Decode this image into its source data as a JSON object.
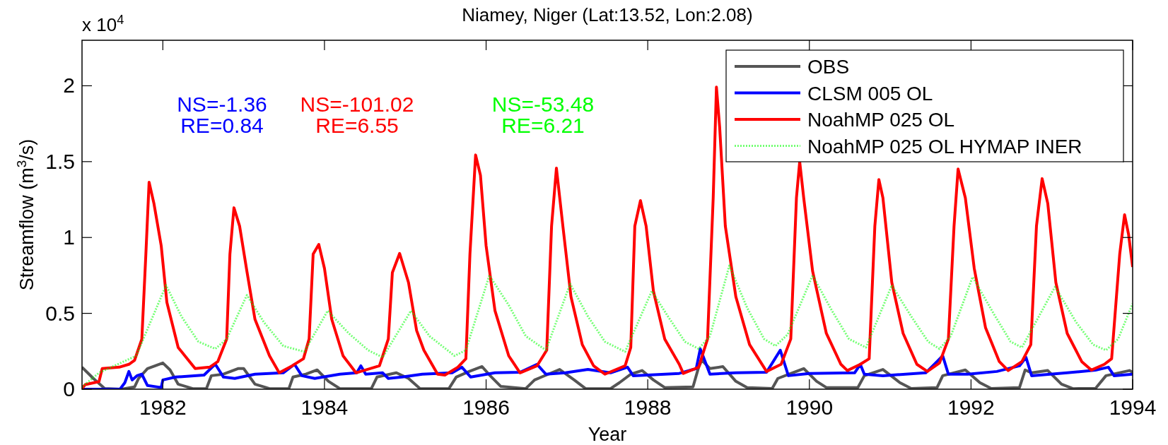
{
  "chart_data": {
    "type": "line",
    "title": "Niamey, Niger (Lat:13.52, Lon:2.08)",
    "xlabel": "Year",
    "ylabel": "Streamflow (m$^{3}$/s)",
    "annotations": [
      "x 10$^{4}$",
      "NS=-1.36",
      "RE=0.84",
      "NS=-101.02",
      "RE=6.55",
      "NS=-53.48",
      "RE=6.21"
    ],
    "xlim": [
      1981,
      1994
    ],
    "xticks": [
      1982,
      1984,
      1986,
      1988,
      1990,
      1992,
      1994
    ],
    "ylim": [
      0,
      2.3
    ],
    "yticks": [
      0,
      0.5,
      1,
      1.5,
      2
    ],
    "grid": false,
    "legend": "top right",
    "line_style": "solid",
    "series": [
      {
        "name": "OBS",
        "color": "#555555",
        "x": [
          1981.0,
          1981.14,
          1981.28,
          1981.49,
          1981.65,
          1981.7,
          1981.81,
          1982.0,
          1982.09,
          1982.19,
          1982.37,
          1982.54,
          1982.6,
          1982.75,
          1982.93,
          1983.0,
          1983.14,
          1983.32,
          1983.56,
          1983.61,
          1983.77,
          1983.91,
          1984.05,
          1984.19,
          1984.58,
          1984.65,
          1984.89,
          1985.04,
          1985.18,
          1985.54,
          1985.63,
          1985.79,
          1985.95,
          1986.05,
          1986.18,
          1986.49,
          1986.6,
          1986.77,
          1986.91,
          1987.09,
          1987.23,
          1987.54,
          1987.65,
          1987.79,
          1987.93,
          1988.07,
          1988.21,
          1988.56,
          1988.63,
          1988.67,
          1988.77,
          1988.93,
          1989.09,
          1989.23,
          1989.54,
          1989.61,
          1989.75,
          1989.93,
          1990.09,
          1990.21,
          1990.6,
          1990.68,
          1990.91,
          1991.12,
          1991.26,
          1991.58,
          1991.65,
          1991.93,
          1992.11,
          1992.25,
          1992.6,
          1992.67,
          1992.75,
          1992.95,
          1993.12,
          1993.26,
          1993.54,
          1993.67,
          1993.96,
          1994.0
        ],
        "values": [
          0.145,
          0.071,
          0.005,
          0,
          0.015,
          0.071,
          0.136,
          0.173,
          0.127,
          0.033,
          0.004,
          0.005,
          0.089,
          0.099,
          0.136,
          0.136,
          0.033,
          0.004,
          0.004,
          0.08,
          0.099,
          0.127,
          0.052,
          0.004,
          0.004,
          0.08,
          0.108,
          0.071,
          0.005,
          0.004,
          0.08,
          0.117,
          0.149,
          0.089,
          0.019,
          0.004,
          0.061,
          0.099,
          0.13,
          0.061,
          0.004,
          0.004,
          0.043,
          0.099,
          0.123,
          0.061,
          0.011,
          0.015,
          0.145,
          0.192,
          0.136,
          0.149,
          0.052,
          0.011,
          0.005,
          0.071,
          0.099,
          0.136,
          0.052,
          0.011,
          0.011,
          0.089,
          0.13,
          0.043,
          0.005,
          0.011,
          0.089,
          0.127,
          0.043,
          0.005,
          0.011,
          0.127,
          0.108,
          0.123,
          0.033,
          0.004,
          0.005,
          0.089,
          0.123,
          0.112
        ]
      },
      {
        "name": "CLSM 005 OL",
        "color": "#0000ff",
        "x": [
          1981.0,
          1981.47,
          1981.53,
          1981.58,
          1981.62,
          1981.68,
          1981.74,
          1981.81,
          1981.98,
          1982.0,
          1982.16,
          1982.51,
          1982.61,
          1982.65,
          1982.75,
          1982.89,
          1983.14,
          1983.49,
          1983.63,
          1983.72,
          1983.88,
          1984.19,
          1984.4,
          1984.45,
          1984.51,
          1984.72,
          1984.79,
          1984.96,
          1985.21,
          1985.58,
          1985.7,
          1985.81,
          1986.11,
          1986.42,
          1986.63,
          1986.74,
          1986.98,
          1987.26,
          1987.54,
          1987.75,
          1987.82,
          1988.39,
          1988.6,
          1988.65,
          1988.77,
          1989.09,
          1989.47,
          1989.64,
          1989.74,
          1990.0,
          1990.56,
          1990.63,
          1990.68,
          1990.91,
          1991.44,
          1991.65,
          1991.72,
          1991.96,
          1992.32,
          1992.6,
          1992.68,
          1992.75,
          1993.19,
          1993.54,
          1993.7,
          1993.77,
          1994.0
        ],
        "values": [
          0,
          0,
          0.043,
          0.117,
          0.061,
          0.089,
          0.099,
          0.024,
          0.011,
          0.061,
          0.08,
          0.093,
          0.145,
          0.164,
          0.08,
          0.071,
          0.099,
          0.108,
          0.164,
          0.089,
          0.071,
          0.099,
          0.108,
          0.154,
          0.099,
          0.108,
          0.071,
          0.08,
          0.099,
          0.108,
          0.145,
          0.08,
          0.108,
          0.112,
          0.164,
          0.099,
          0.108,
          0.13,
          0.108,
          0.145,
          0.089,
          0.104,
          0.136,
          0.266,
          0.099,
          0.108,
          0.112,
          0.257,
          0.089,
          0.104,
          0.108,
          0.164,
          0.099,
          0.089,
          0.108,
          0.22,
          0.099,
          0.099,
          0.117,
          0.154,
          0.21,
          0.089,
          0.108,
          0.126,
          0.145,
          0.089,
          0.099
        ]
      },
      {
        "name": "NoahMP 025 OL",
        "color": "#ff0000",
        "x": [
          1981.0,
          1981.04,
          1981.21,
          1981.25,
          1981.46,
          1981.58,
          1981.65,
          1981.74,
          1981.79,
          1981.83,
          1981.89,
          1981.98,
          1982.05,
          1982.19,
          1982.4,
          1982.58,
          1982.68,
          1982.79,
          1982.83,
          1982.88,
          1982.95,
          1983.04,
          1983.14,
          1983.32,
          1983.44,
          1983.6,
          1983.74,
          1983.81,
          1983.86,
          1983.93,
          1984.0,
          1984.09,
          1984.23,
          1984.39,
          1984.68,
          1984.79,
          1984.84,
          1984.93,
          1985.04,
          1985.14,
          1985.23,
          1985.4,
          1985.49,
          1985.65,
          1985.75,
          1985.8,
          1985.87,
          1985.93,
          1986.0,
          1986.11,
          1986.28,
          1986.42,
          1986.63,
          1986.75,
          1986.81,
          1986.87,
          1986.95,
          1987.05,
          1987.19,
          1987.33,
          1987.47,
          1987.72,
          1987.79,
          1987.84,
          1987.91,
          1987.98,
          1988.07,
          1988.21,
          1988.39,
          1988.44,
          1988.63,
          1988.74,
          1988.81,
          1988.85,
          1988.89,
          1988.96,
          1989.09,
          1989.26,
          1989.47,
          1989.65,
          1989.77,
          1989.84,
          1989.88,
          1989.93,
          1990.04,
          1990.21,
          1990.39,
          1990.47,
          1990.63,
          1990.74,
          1990.81,
          1990.86,
          1990.91,
          1991.02,
          1991.16,
          1991.33,
          1991.46,
          1991.61,
          1991.72,
          1991.79,
          1991.84,
          1991.93,
          1992.04,
          1992.18,
          1992.35,
          1992.46,
          1992.63,
          1992.74,
          1992.81,
          1992.88,
          1992.95,
          1993.05,
          1993.19,
          1993.37,
          1993.49,
          1993.65,
          1993.74,
          1993.84,
          1993.9,
          1993.95,
          1994.0
        ],
        "values": [
          0.005,
          0.03,
          0.05,
          0.136,
          0.145,
          0.164,
          0.19,
          0.33,
          0.89,
          1.364,
          1.224,
          0.945,
          0.573,
          0.275,
          0.136,
          0.145,
          0.182,
          0.331,
          0.89,
          1.196,
          1.075,
          0.778,
          0.461,
          0.22,
          0.108,
          0.154,
          0.201,
          0.331,
          0.89,
          0.954,
          0.796,
          0.461,
          0.22,
          0.108,
          0.154,
          0.331,
          0.768,
          0.895,
          0.703,
          0.387,
          0.257,
          0.099,
          0.093,
          0.145,
          0.201,
          0.89,
          1.544,
          1.41,
          0.945,
          0.517,
          0.22,
          0.108,
          0.154,
          0.257,
          1.075,
          1.457,
          1.075,
          0.61,
          0.294,
          0.154,
          0.099,
          0.154,
          0.275,
          1.075,
          1.243,
          1.075,
          0.647,
          0.331,
          0.164,
          0.104,
          0.145,
          0.331,
          1.261,
          1.991,
          1.727,
          1.075,
          0.61,
          0.294,
          0.117,
          0.164,
          0.331,
          1.261,
          1.5,
          1.261,
          0.778,
          0.368,
          0.164,
          0.123,
          0.164,
          0.201,
          1.075,
          1.382,
          1.261,
          0.703,
          0.368,
          0.164,
          0.117,
          0.173,
          0.331,
          1.075,
          1.451,
          1.261,
          0.796,
          0.405,
          0.182,
          0.123,
          0.182,
          0.294,
          1.075,
          1.388,
          1.224,
          0.703,
          0.368,
          0.182,
          0.126,
          0.164,
          0.201,
          0.89,
          1.15,
          1.019,
          0.805
        ]
      },
      {
        "name": "NoahMP 025 OL HYMAP INER",
        "color": "#00ff00",
        "line_style": "dotted",
        "x": [
          1981.0,
          1981.21,
          1981.67,
          1982.04,
          1982.23,
          1982.44,
          1982.65,
          1982.79,
          1983.04,
          1983.25,
          1983.49,
          1983.75,
          1984.04,
          1984.3,
          1984.54,
          1984.72,
          1985.07,
          1985.3,
          1985.61,
          1985.75,
          1986.04,
          1986.28,
          1986.49,
          1986.74,
          1987.04,
          1987.26,
          1987.47,
          1987.72,
          1988.05,
          1988.25,
          1988.46,
          1988.63,
          1988.77,
          1989.01,
          1989.23,
          1989.44,
          1989.58,
          1989.73,
          1990.04,
          1990.28,
          1990.49,
          1990.7,
          1991.02,
          1991.26,
          1991.47,
          1991.61,
          1991.75,
          1992.02,
          1992.28,
          1992.49,
          1992.63,
          1993.04,
          1993.3,
          1993.51,
          1993.67,
          1993.82,
          1994.0
        ],
        "values": [
          0.015,
          0.108,
          0.22,
          0.685,
          0.48,
          0.313,
          0.266,
          0.331,
          0.62,
          0.442,
          0.285,
          0.247,
          0.517,
          0.368,
          0.257,
          0.21,
          0.517,
          0.35,
          0.22,
          0.257,
          0.75,
          0.554,
          0.35,
          0.257,
          0.694,
          0.48,
          0.313,
          0.247,
          0.647,
          0.48,
          0.313,
          0.266,
          0.35,
          0.815,
          0.536,
          0.331,
          0.285,
          0.36,
          0.75,
          0.517,
          0.331,
          0.275,
          0.685,
          0.48,
          0.313,
          0.266,
          0.35,
          0.74,
          0.498,
          0.313,
          0.275,
          0.675,
          0.442,
          0.294,
          0.257,
          0.331,
          0.564
        ]
      }
    ]
  }
}
